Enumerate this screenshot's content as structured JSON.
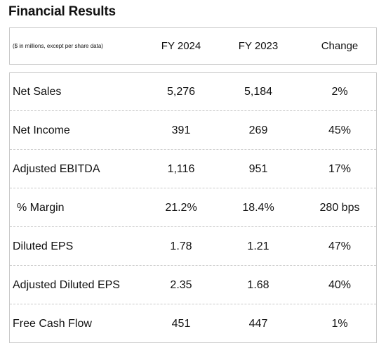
{
  "title": "Financial Results",
  "header": {
    "note": "($ in millions, except per share data)",
    "columns": [
      "FY 2024",
      "FY 2023",
      "Change"
    ]
  },
  "rows": [
    {
      "label": "Net Sales",
      "fy2024": "5,276",
      "fy2023": "5,184",
      "change": "2%"
    },
    {
      "label": "Net Income",
      "fy2024": "391",
      "fy2023": "269",
      "change": "45%"
    },
    {
      "label": "Adjusted EBITDA",
      "fy2024": "1,116",
      "fy2023": "951",
      "change": "17%"
    },
    {
      "label": "% Margin",
      "fy2024": "21.2%",
      "fy2023": "18.4%",
      "change": "280 bps"
    },
    {
      "label": "Diluted EPS",
      "fy2024": "1.78",
      "fy2023": "1.21",
      "change": "47%"
    },
    {
      "label": "Adjusted Diluted EPS",
      "fy2024": "2.35",
      "fy2023": "1.68",
      "change": "40%"
    },
    {
      "label": "Free Cash Flow",
      "fy2024": "451",
      "fy2023": "447",
      "change": "1%"
    }
  ]
}
